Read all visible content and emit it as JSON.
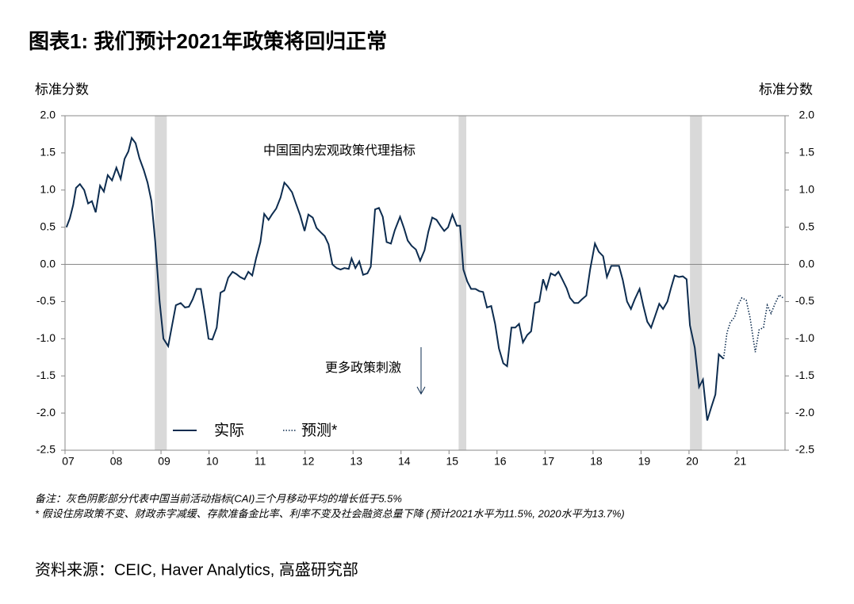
{
  "chart_data": {
    "type": "line",
    "title": "图表1: 我们预计2021年政策将回归正常",
    "y_label": "标准分数",
    "y2_label": "标准分数",
    "annotation": "中国国内宏观政策代理指标",
    "arrow_annotation": "更多政策刺激",
    "note1": "备注：灰色阴影部分代表中国当前活动指标(CAI)三个月移动平均的增长低于5.5%",
    "note2": "* 假设住房政策不变、财政赤字减缓、存款准备金比率、利率不变及社会融资总量下降 (预计2021水平为11.5%, 2020水平为13.7%)",
    "source": "资料来源：CEIC, Haver Analytics, 高盛研究部",
    "xlim": [
      2007,
      2022
    ],
    "xticks": [
      {
        "value": 2007,
        "label": "07"
      },
      {
        "value": 2008,
        "label": "08"
      },
      {
        "value": 2009,
        "label": "09"
      },
      {
        "value": 2010,
        "label": "10"
      },
      {
        "value": 2011,
        "label": "11"
      },
      {
        "value": 2012,
        "label": "12"
      },
      {
        "value": 2013,
        "label": "13"
      },
      {
        "value": 2014,
        "label": "14"
      },
      {
        "value": 2015,
        "label": "15"
      },
      {
        "value": 2016,
        "label": "16"
      },
      {
        "value": 2017,
        "label": "17"
      },
      {
        "value": 2018,
        "label": "18"
      },
      {
        "value": 2019,
        "label": "19"
      },
      {
        "value": 2020,
        "label": "20"
      },
      {
        "value": 2021,
        "label": "21"
      }
    ],
    "ylim": [
      -2.5,
      2.0
    ],
    "yticks": [
      {
        "value": 2,
        "label": "2.0"
      },
      1.5,
      {
        "value": 1,
        "label": "1.0"
      },
      0.5,
      {
        "value": 0,
        "label": "0.0"
      },
      -0.5,
      {
        "value": -1,
        "label": "-1.0"
      },
      -1.5,
      {
        "value": -2,
        "label": "-2.0"
      },
      -2.5
    ],
    "y2lim": [
      -2.5,
      2.0
    ],
    "y2ticks": [
      {
        "value": 2,
        "label": "2.0"
      },
      1.5,
      {
        "value": 1,
        "label": "1.0"
      },
      0.5,
      {
        "value": 0,
        "label": "0.0"
      },
      -0.5,
      {
        "value": -1,
        "label": "-1.0"
      },
      -1.5,
      {
        "value": -2,
        "label": "-2.0"
      },
      -2.5
    ],
    "shaded_periods": [
      [
        2008.87,
        2009.12
      ],
      [
        2015.2,
        2015.36
      ],
      [
        2020.02,
        2020.27
      ]
    ],
    "shade_color": "#d9d9d9",
    "series": [
      {
        "name": "实际",
        "color": "#0d2c4f",
        "style": "solid",
        "x": [
          2007.03,
          2007.1,
          2007.17,
          2007.23,
          2007.31,
          2007.4,
          2007.48,
          2007.56,
          2007.64,
          2007.73,
          2007.81,
          2007.89,
          2007.98,
          2008.07,
          2008.16,
          2008.24,
          2008.32,
          2008.39,
          2008.47,
          2008.55,
          2008.64,
          2008.72,
          2008.8,
          2008.88,
          2008.97,
          2009.05,
          2009.15,
          2009.23,
          2009.31,
          2009.41,
          2009.5,
          2009.58,
          2009.66,
          2009.74,
          2009.83,
          2009.91,
          2009.99,
          2010.07,
          2010.16,
          2010.24,
          2010.32,
          2010.4,
          2010.49,
          2010.57,
          2010.65,
          2010.74,
          2010.82,
          2010.9,
          2010.98,
          2011.07,
          2011.15,
          2011.24,
          2011.31,
          2011.4,
          2011.49,
          2011.57,
          2011.64,
          2011.73,
          2011.81,
          2011.9,
          2011.99,
          2012.07,
          2012.16,
          2012.24,
          2012.33,
          2012.41,
          2012.49,
          2012.57,
          2012.66,
          2012.74,
          2012.82,
          2012.91,
          2012.97,
          2013.05,
          2013.13,
          2013.21,
          2013.3,
          2013.37,
          2013.46,
          2013.54,
          2013.62,
          2013.7,
          2013.79,
          2013.87,
          2013.98,
          2014.06,
          2014.14,
          2014.22,
          2014.31,
          2014.4,
          2014.49,
          2014.57,
          2014.65,
          2014.74,
          2014.82,
          2014.9,
          2014.98,
          2015.07,
          2015.16,
          2015.23,
          2015.3,
          2015.38,
          2015.46,
          2015.55,
          2015.63,
          2015.71,
          2015.79,
          2015.88,
          2015.96,
          2016.04,
          2016.13,
          2016.21,
          2016.3,
          2016.38,
          2016.46,
          2016.54,
          2016.63,
          2016.71,
          2016.79,
          2016.88,
          2016.96,
          2017.03,
          2017.12,
          2017.21,
          2017.28,
          2017.36,
          2017.45,
          2017.52,
          2017.61,
          2017.69,
          2017.77,
          2017.86,
          2017.94,
          2018.04,
          2018.12,
          2018.21,
          2018.29,
          2018.38,
          2018.45,
          2018.54,
          2018.62,
          2018.71,
          2018.79,
          2018.87,
          2018.97,
          2019.05,
          2019.13,
          2019.21,
          2019.29,
          2019.38,
          2019.46,
          2019.55,
          2019.62,
          2019.7,
          2019.79,
          2019.87,
          2019.95,
          2020.02,
          2020.12,
          2020.21,
          2020.29,
          2020.38,
          2020.46,
          2020.55,
          2020.62,
          2020.72
        ],
        "values": [
          0.5,
          0.62,
          0.8,
          1.03,
          1.08,
          1.0,
          0.82,
          0.85,
          0.7,
          1.06,
          0.98,
          1.2,
          1.13,
          1.3,
          1.15,
          1.42,
          1.52,
          1.7,
          1.63,
          1.43,
          1.27,
          1.1,
          0.85,
          0.3,
          -0.5,
          -1.0,
          -1.1,
          -0.82,
          -0.55,
          -0.52,
          -0.58,
          -0.57,
          -0.47,
          -0.33,
          -0.33,
          -0.65,
          -1.0,
          -1.01,
          -0.85,
          -0.38,
          -0.35,
          -0.18,
          -0.1,
          -0.13,
          -0.17,
          -0.2,
          -0.1,
          -0.15,
          0.08,
          0.3,
          0.68,
          0.6,
          0.67,
          0.75,
          0.9,
          1.1,
          1.05,
          0.97,
          0.82,
          0.66,
          0.45,
          0.67,
          0.63,
          0.49,
          0.43,
          0.38,
          0.27,
          0.0,
          -0.05,
          -0.07,
          -0.05,
          -0.06,
          0.08,
          -0.05,
          0.04,
          -0.14,
          -0.12,
          -0.03,
          0.74,
          0.76,
          0.64,
          0.3,
          0.28,
          0.46,
          0.64,
          0.49,
          0.32,
          0.25,
          0.2,
          0.05,
          0.19,
          0.44,
          0.63,
          0.6,
          0.52,
          0.45,
          0.5,
          0.67,
          0.52,
          0.52,
          -0.07,
          -0.23,
          -0.33,
          -0.33,
          -0.36,
          -0.37,
          -0.58,
          -0.56,
          -0.8,
          -1.13,
          -1.33,
          -1.37,
          -0.85,
          -0.85,
          -0.8,
          -1.05,
          -0.95,
          -0.9,
          -0.52,
          -0.5,
          -0.2,
          -0.33,
          -0.12,
          -0.15,
          -0.1,
          -0.2,
          -0.32,
          -0.45,
          -0.52,
          -0.52,
          -0.47,
          -0.42,
          -0.07,
          0.28,
          0.17,
          0.11,
          -0.17,
          -0.02,
          -0.02,
          -0.02,
          -0.21,
          -0.5,
          -0.6,
          -0.47,
          -0.33,
          -0.56,
          -0.77,
          -0.85,
          -0.7,
          -0.53,
          -0.6,
          -0.5,
          -0.33,
          -0.15,
          -0.17,
          -0.16,
          -0.2,
          -0.82,
          -1.12,
          -1.65,
          -1.55,
          -2.1,
          -1.93,
          -1.75,
          -1.21,
          -1.27
        ]
      },
      {
        "name": "预测*",
        "color": "#0d2c4f",
        "style": "dotted",
        "x": [
          2020.72,
          2020.79,
          2020.86,
          2020.95,
          2021.02,
          2021.1,
          2021.19,
          2021.27,
          2021.38,
          2021.46,
          2021.55,
          2021.63,
          2021.71,
          2021.79,
          2021.88,
          2021.96
        ],
        "values": [
          -1.27,
          -0.92,
          -0.78,
          -0.71,
          -0.55,
          -0.45,
          -0.48,
          -0.71,
          -1.18,
          -0.88,
          -0.85,
          -0.55,
          -0.66,
          -0.53,
          -0.41,
          -0.45
        ]
      }
    ]
  }
}
